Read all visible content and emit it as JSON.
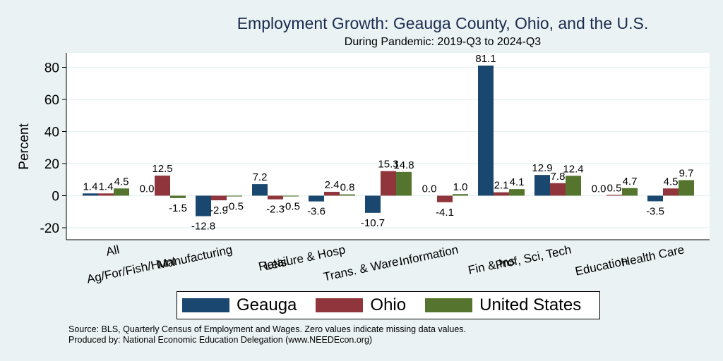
{
  "chart_data": {
    "type": "bar",
    "title": "Employment Growth: Geauga County, Ohio, and the U.S.",
    "subtitle": "During Pandemic: 2019-Q3 to 2024-Q3",
    "xlabel": "",
    "ylabel": "Percent",
    "ylim": [
      -28,
      89
    ],
    "yticks": [
      -20,
      0,
      20,
      40,
      60,
      80
    ],
    "grid": true,
    "legend_position": "bottom",
    "categories": [
      "All",
      "Ag/For/Fish/Hunt",
      "Manufacturing",
      "Retail",
      "Leisure & Hosp",
      "Trans. & Ware.",
      "Information",
      "Fin & Ins",
      "Prof, Sci, Tech",
      "Education",
      "Health Care"
    ],
    "series": [
      {
        "name": "Geauga",
        "color": "#1a476f",
        "values": [
          1.4,
          0.0,
          -12.8,
          7.2,
          -3.6,
          -10.7,
          0.0,
          81.1,
          12.9,
          0.0,
          -3.5
        ]
      },
      {
        "name": "Ohio",
        "color": "#90353b",
        "values": [
          1.4,
          12.5,
          -2.9,
          -2.3,
          2.4,
          15.3,
          -4.1,
          2.1,
          7.8,
          0.5,
          4.5
        ]
      },
      {
        "name": "United States",
        "color": "#55752f",
        "values": [
          4.5,
          -1.5,
          -0.5,
          -0.5,
          0.8,
          14.8,
          1.0,
          4.1,
          12.4,
          4.7,
          9.7
        ]
      }
    ]
  },
  "notes": {
    "source": "Source: BLS, Quarterly Census of Employment and Wages. Zero values indicate missing data values.",
    "produced_by": "Produced by: National Economic Education Delegation (www.NEEDEcon.org)"
  }
}
